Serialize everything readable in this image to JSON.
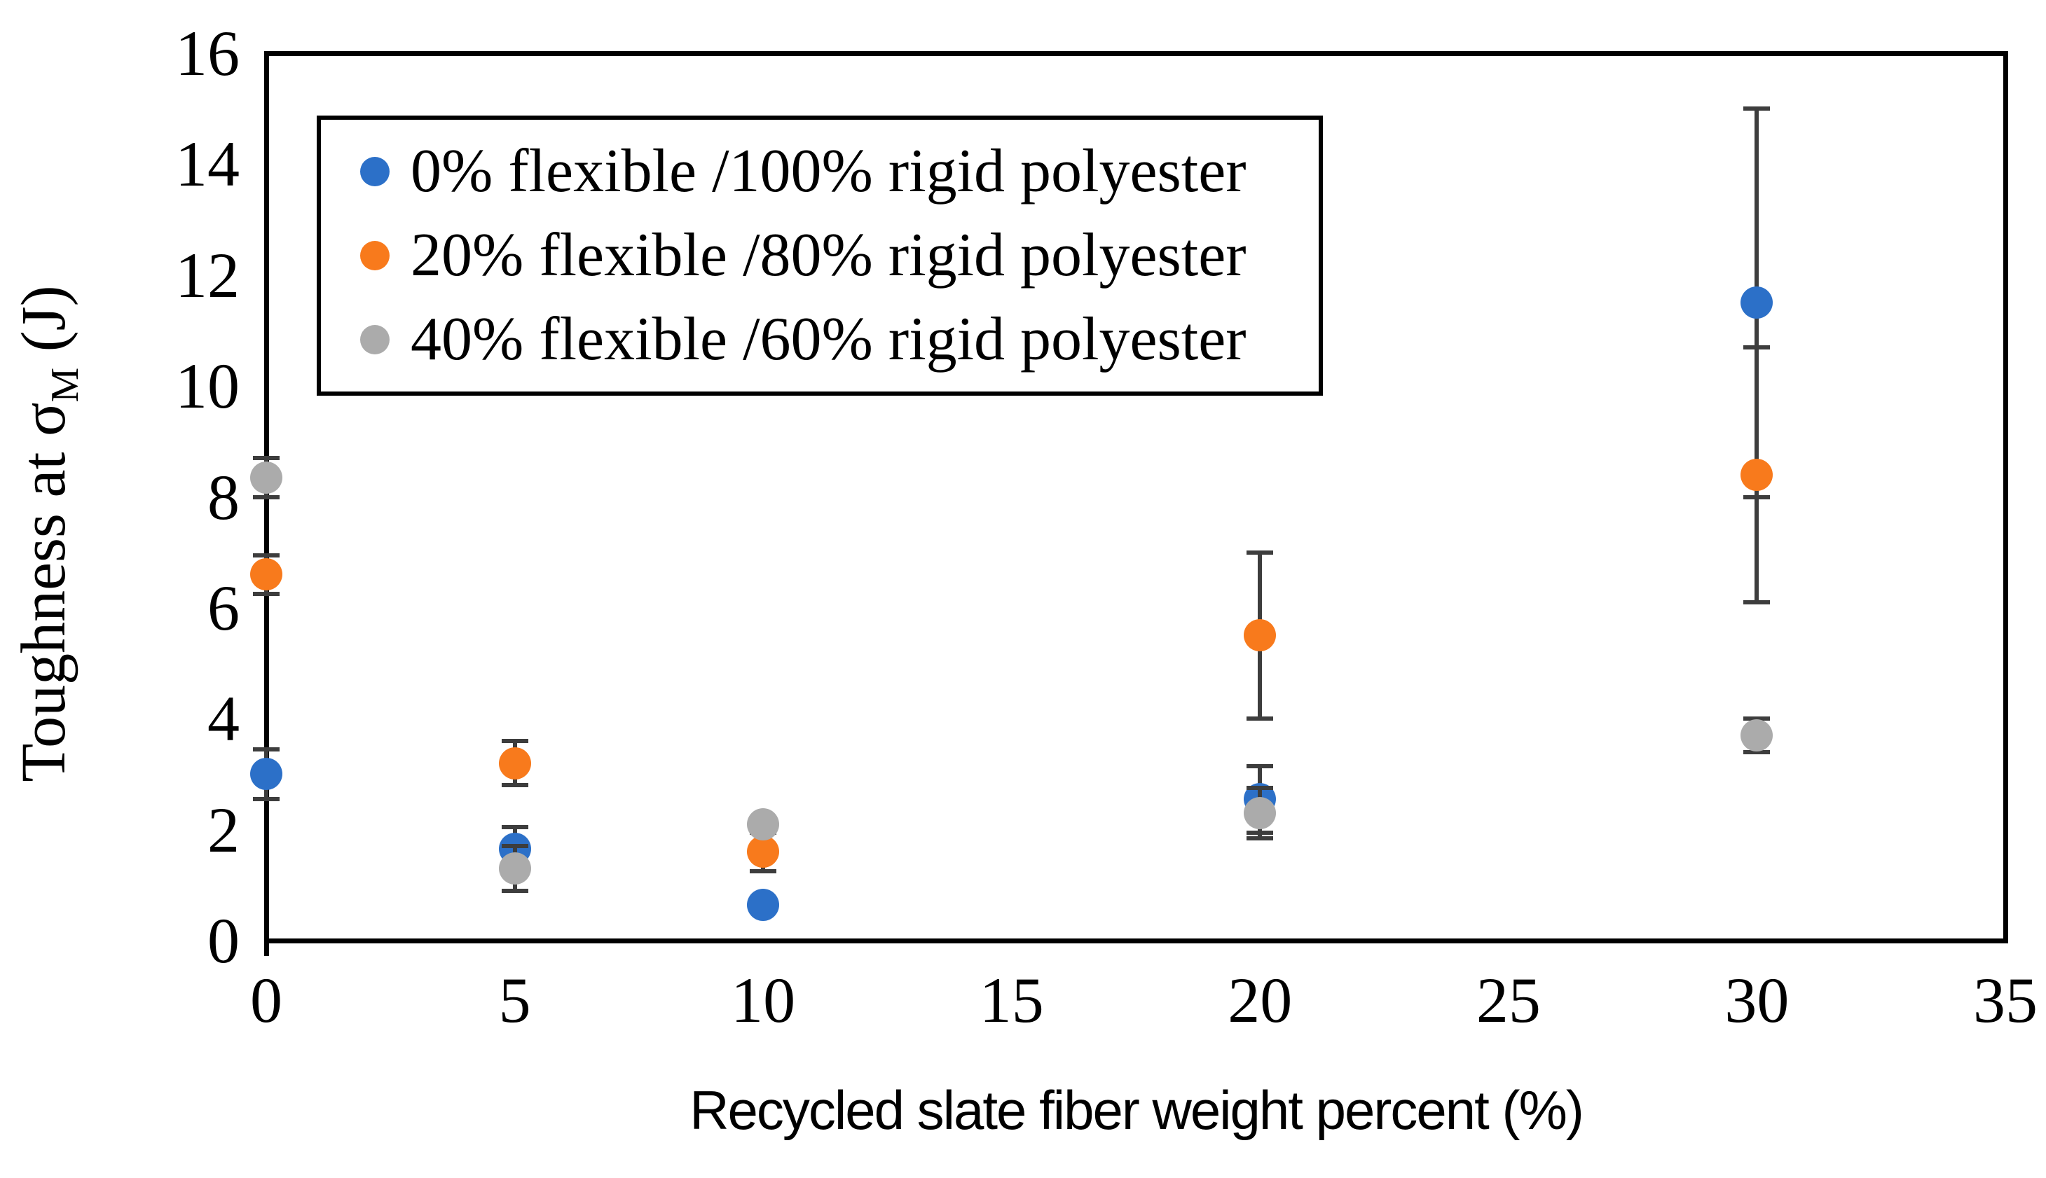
{
  "figure": {
    "background": "#FFFFFF",
    "axis_color": "#000000",
    "error_bar_color": "#3D3D3D",
    "text_color": "#000000"
  },
  "chart_data": {
    "type": "scatter",
    "title": "",
    "xlabel": "Recycled slate fiber weight percent (%)",
    "ylabel": "Toughness at σM (J)",
    "ylabel_parts": {
      "pre": "Toughness at σ",
      "sub": "M",
      "post": " (J)"
    },
    "xlim": [
      0,
      35
    ],
    "ylim": [
      0,
      16
    ],
    "xticks": [
      0,
      5,
      10,
      15,
      20,
      25,
      30,
      35
    ],
    "yticks": [
      0,
      2,
      4,
      6,
      8,
      10,
      12,
      14,
      16
    ],
    "grid": false,
    "legend_position": "top-left-inside",
    "error_bars": true,
    "series": [
      {
        "name": "0% flexible /100% rigid polyester",
        "color": "#2C70C8",
        "points": [
          {
            "x": 0,
            "y": 3.0,
            "err": 0.45
          },
          {
            "x": 5,
            "y": 1.65,
            "err": 0.4
          },
          {
            "x": 10,
            "y": 0.65,
            "err": 0.1
          },
          {
            "x": 20,
            "y": 2.55,
            "err": 0.6
          },
          {
            "x": 30,
            "y": 11.5,
            "err": 3.5
          }
        ]
      },
      {
        "name": "20% flexible /80% rigid polyester",
        "color": "#F87A1C",
        "points": [
          {
            "x": 0,
            "y": 6.6,
            "err": 0.35
          },
          {
            "x": 5,
            "y": 3.2,
            "err": 0.4
          },
          {
            "x": 10,
            "y": 1.6,
            "err": 0.35
          },
          {
            "x": 20,
            "y": 5.5,
            "err": 1.5
          },
          {
            "x": 30,
            "y": 8.4,
            "err": 2.3
          }
        ]
      },
      {
        "name": "40% flexible /60% rigid polyester",
        "color": "#ABABAB",
        "points": [
          {
            "x": 0,
            "y": 8.35,
            "err": 0.35
          },
          {
            "x": 5,
            "y": 1.3,
            "err": 0.4
          },
          {
            "x": 10,
            "y": 2.1,
            "err": 0.1
          },
          {
            "x": 20,
            "y": 2.3,
            "err": 0.45
          },
          {
            "x": 30,
            "y": 3.7,
            "err": 0.3
          }
        ]
      }
    ]
  }
}
